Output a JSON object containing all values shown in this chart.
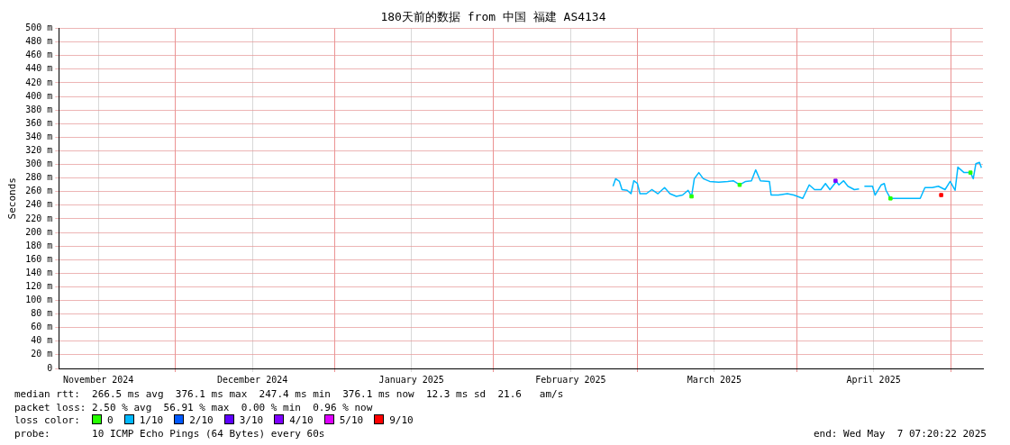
{
  "chart_data": {
    "type": "line",
    "title": "180天前的数据 from 中国 福建 AS4134",
    "ylabel": "Seconds",
    "legend_title": "loss color:",
    "legend": "bottom",
    "grid": true,
    "marker": "none",
    "line_style": "solid",
    "xlim": [
      "2024-11-08T07:20",
      "2025-05-07T07:20"
    ],
    "xticks": [
      {
        "value": "2024-11-16",
        "label": "November 2024"
      },
      {
        "value": "2024-12-01",
        "label": null
      },
      {
        "value": "2024-12-16",
        "label": "December 2024"
      },
      {
        "value": "2025-01-01",
        "label": null
      },
      {
        "value": "2025-01-16",
        "label": "January 2025"
      },
      {
        "value": "2025-02-01",
        "label": null
      },
      {
        "value": "2025-02-16",
        "label": "February 2025"
      },
      {
        "value": "2025-03-01",
        "label": null
      },
      {
        "value": "2025-03-16",
        "label": "March 2025"
      },
      {
        "value": "2025-04-01",
        "label": null
      },
      {
        "value": "2025-04-16",
        "label": "April 2025"
      },
      {
        "value": "2025-05-01",
        "label": null
      }
    ],
    "ylim": [
      0,
      500
    ],
    "yticks": [
      0,
      {
        "value": 20,
        "label": "20 m"
      },
      {
        "value": 40,
        "label": "40 m"
      },
      {
        "value": 60,
        "label": "60 m"
      },
      {
        "value": 80,
        "label": "80 m"
      },
      {
        "value": 100,
        "label": "100 m"
      },
      {
        "value": 120,
        "label": "120 m"
      },
      {
        "value": 140,
        "label": "140 m"
      },
      {
        "value": 160,
        "label": "160 m"
      },
      {
        "value": 180,
        "label": "180 m"
      },
      {
        "value": 200,
        "label": "200 m"
      },
      {
        "value": 220,
        "label": "220 m"
      },
      {
        "value": 240,
        "label": "240 m"
      },
      {
        "value": 260,
        "label": "260 m"
      },
      {
        "value": 280,
        "label": "280 m"
      },
      {
        "value": 300,
        "label": "300 m"
      },
      {
        "value": 320,
        "label": "320 m"
      },
      {
        "value": 340,
        "label": "340 m"
      },
      {
        "value": 360,
        "label": "360 m"
      },
      {
        "value": 380,
        "label": "380 m"
      },
      {
        "value": 400,
        "label": "400 m"
      },
      {
        "value": 420,
        "label": "420 m"
      },
      {
        "value": 440,
        "label": "440 m"
      },
      {
        "value": 460,
        "label": "460 m"
      },
      {
        "value": 480,
        "label": "480 m"
      },
      {
        "value": 500,
        "label": "500 m"
      }
    ],
    "series": [
      {
        "name": "0",
        "type": "scatter",
        "marker": "square",
        "color": "#26ff00",
        "x": [
          "2025-03-11T13:00",
          "2025-03-20T22:00",
          "2025-04-19T07:00",
          "2025-05-04T21:00"
        ],
        "values": [
          253,
          270,
          250,
          288
        ]
      },
      {
        "name": "1/10",
        "color": "#00b8ff",
        "x": [
          "2025-02-24T06:00",
          "2025-02-24T18:00",
          "2025-02-25T12:00",
          "2025-02-26T00:00",
          "2025-02-27T00:00",
          "2025-02-27T18:00",
          "2025-02-28T07:00",
          "2025-03-01T00:00",
          "2025-03-01T12:00",
          "2025-03-02T18:00",
          "2025-03-03T19:00",
          "2025-03-05T00:00",
          "2025-03-06T07:00",
          "2025-03-07T08:00",
          "2025-03-08T14:00",
          "2025-03-09T19:00",
          "2025-03-10T21:00",
          "2025-03-11T13:00",
          "2025-03-12T02:00",
          "2025-03-12T23:00",
          "2025-03-13T20:00",
          "2025-03-15T02:00",
          "2025-03-16T20:00",
          "2025-03-18T14:00",
          "2025-03-19T16:00",
          "2025-03-20T22:00",
          "2025-03-22T02:00",
          "2025-03-23T05:00",
          "2025-03-24T01:00",
          "2025-03-24T23:00",
          "2025-03-26T17:00",
          "2025-03-27T01:00",
          "2025-03-28T11:00",
          "2025-03-30T05:00",
          "2025-03-31T11:00",
          "2025-04-02T05:00",
          "2025-04-03T11:00",
          "2025-04-04T12:00",
          "2025-04-05T18:00",
          "2025-04-06T15:00",
          "2025-04-07T12:00",
          "2025-04-08T18:00",
          "2025-04-09T06:00",
          "2025-04-10T04:00",
          "2025-04-11T00:00",
          "2025-04-12T06:00",
          "2025-04-13T04:00",
          "2025-04-13T16:00",
          "2025-04-14T05:00",
          "2025-04-15T19:00",
          "2025-04-16T07:00",
          "2025-04-17T12:00",
          "2025-04-18T02:00",
          "2025-04-18T10:00",
          "2025-04-19T07:00",
          "2025-04-21T14:00",
          "2025-04-23T08:00",
          "2025-04-25T02:00",
          "2025-04-26T00:00",
          "2025-04-27T10:00",
          "2025-04-28T15:00",
          "2025-04-29T22:00",
          "2025-04-30T22:00",
          "2025-05-01T21:00",
          "2025-05-02T10:00",
          "2025-05-03T15:00",
          "2025-05-04T21:00",
          "2025-05-05T10:00",
          "2025-05-05T22:00",
          "2025-05-06T15:00",
          "2025-05-07T00:00"
        ],
        "values": [
          268,
          279,
          275,
          263,
          262,
          257,
          276,
          272,
          257,
          257,
          263,
          257,
          266,
          257,
          253,
          255,
          262,
          253,
          279,
          288,
          279,
          275,
          274,
          275,
          276,
          270,
          275,
          276,
          292,
          276,
          275,
          255,
          255,
          257,
          255,
          250,
          270,
          263,
          263,
          272,
          263,
          275,
          270,
          276,
          268,
          263,
          264,
          null,
          268,
          268,
          255,
          270,
          272,
          262,
          250,
          250,
          250,
          250,
          266,
          266,
          268,
          263,
          275,
          262,
          296,
          288,
          288,
          279,
          301,
          303,
          295
        ]
      },
      {
        "name": "2/10",
        "type": "scatter",
        "marker": "square",
        "color": "#0059ff"
      },
      {
        "name": "3/10",
        "type": "scatter",
        "marker": "square",
        "color": "#5e00ff"
      },
      {
        "name": "4/10",
        "type": "scatter",
        "marker": "square",
        "color": "#7e00ff",
        "x": [
          "2025-04-08T14:00"
        ],
        "values": [
          276
        ]
      },
      {
        "name": "5/10",
        "type": "scatter",
        "marker": "square",
        "color": "#dd00ff"
      },
      {
        "name": "9/10",
        "type": "scatter",
        "marker": "square",
        "color": "#ff0000",
        "x": [
          "2025-04-29T04:00"
        ],
        "values": [
          255
        ]
      }
    ],
    "annotations": [
      "median rtt:  266.5 ms avg  376.1 ms max  247.4 ms min  376.1 ms now  12.3 ms sd  21.6   am/s",
      "packet loss: 2.50 % avg  56.91 % max  0.00 % min  0.96 % now",
      "probe:       10 ICMP Echo Pings (64 Bytes) every 60s",
      "end: Wed May  7 07:20:22 2025"
    ]
  }
}
